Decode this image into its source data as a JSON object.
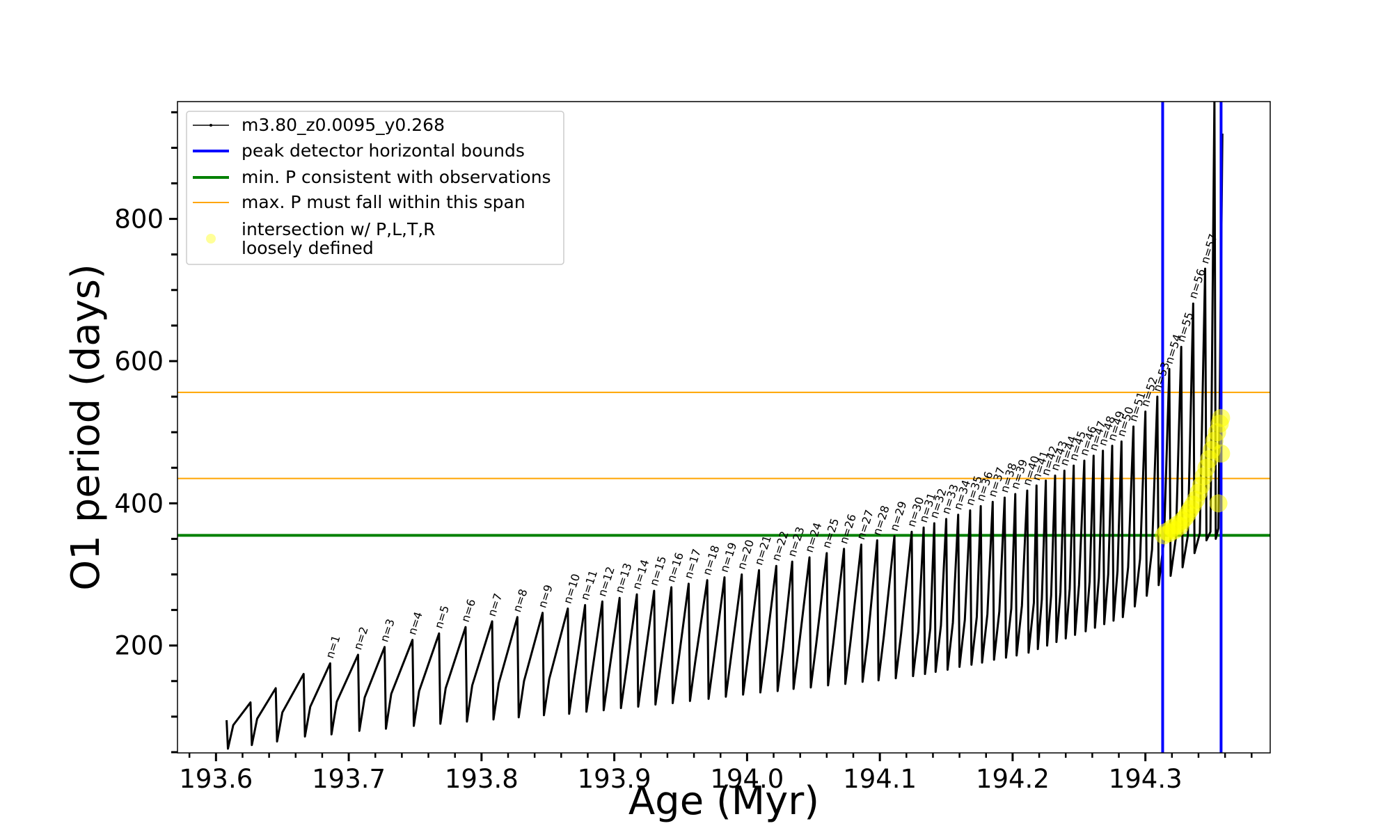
{
  "chart_data": {
    "type": "line",
    "xlabel": "Age (Myr)",
    "ylabel": "O1 period (days)",
    "xlim": [
      193.571,
      194.394
    ],
    "ylim": [
      49,
      965
    ],
    "xticks": [
      193.6,
      193.7,
      193.8,
      193.9,
      {
        "value": 194,
        "label": "194.0"
      },
      194.1,
      194.2,
      194.3
    ],
    "xminor_ticks": [
      193.58,
      193.62,
      193.64,
      193.66,
      193.68,
      193.72,
      193.74,
      193.76,
      193.78,
      193.82,
      193.84,
      193.86,
      193.88,
      193.92,
      193.94,
      193.96,
      193.98,
      194.02,
      194.04,
      194.06,
      194.08,
      194.12,
      194.14,
      194.16,
      194.18,
      194.22,
      194.24,
      194.26,
      194.28,
      194.32,
      194.34,
      194.36,
      194.38
    ],
    "yticks": [
      200,
      400,
      600,
      800
    ],
    "yminor_ticks": [
      50,
      100,
      150,
      250,
      300,
      350,
      450,
      500,
      550,
      650,
      700,
      750,
      850,
      900,
      950
    ],
    "legend": "upper left",
    "series": [
      {
        "name": "m3.80_z0.0095_y0.268",
        "type": "line",
        "color": "#000000",
        "x": [
          193.608,
          193.609,
          193.613,
          193.626,
          193.627,
          193.631,
          193.645,
          193.646,
          193.65,
          193.666,
          193.667,
          193.671,
          193.686,
          193.687,
          193.691,
          193.707,
          193.708,
          193.712,
          193.727,
          193.728,
          193.732,
          193.748,
          193.749,
          193.753,
          193.768,
          193.769,
          193.773,
          193.788,
          193.789,
          193.793,
          193.808,
          193.809,
          193.813,
          193.827,
          193.828,
          193.832,
          193.846,
          193.847,
          193.851,
          193.865,
          193.866,
          193.87,
          193.878,
          193.879,
          193.883,
          193.891,
          193.892,
          193.896,
          193.904,
          193.905,
          193.909,
          193.917,
          193.918,
          193.922,
          193.93,
          193.931,
          193.935,
          193.943,
          193.944,
          193.948,
          193.956,
          193.957,
          193.961,
          193.97,
          193.971,
          193.975,
          193.983,
          193.984,
          193.988,
          193.996,
          193.997,
          194.001,
          194.009,
          194.01,
          194.014,
          194.022,
          194.023,
          194.027,
          194.034,
          194.035,
          194.039,
          194.047,
          194.048,
          194.052,
          194.06,
          194.061,
          194.065,
          194.073,
          194.074,
          194.078,
          194.086,
          194.087,
          194.091,
          194.098,
          194.099,
          194.103,
          194.111,
          194.112,
          194.116,
          194.124,
          194.125,
          194.129,
          194.133,
          194.134,
          194.138,
          194.141,
          194.142,
          194.146,
          194.15,
          194.151,
          194.155,
          194.159,
          194.16,
          194.164,
          194.168,
          194.169,
          194.173,
          194.176,
          194.177,
          194.181,
          194.185,
          194.186,
          194.19,
          194.194,
          194.195,
          194.199,
          194.202,
          194.203,
          194.207,
          194.211,
          194.212,
          194.216,
          194.218,
          194.219,
          194.222,
          194.225,
          194.226,
          194.229,
          194.232,
          194.233,
          194.236,
          194.239,
          194.24,
          194.243,
          194.246,
          194.247,
          194.25,
          194.254,
          194.255,
          194.258,
          194.261,
          194.262,
          194.265,
          194.268,
          194.269,
          194.272,
          194.275,
          194.276,
          194.279,
          194.282,
          194.283,
          194.287,
          194.291,
          194.292,
          194.296,
          194.3,
          194.301,
          194.305,
          194.309,
          194.31,
          194.314,
          194.318,
          194.319,
          194.323,
          194.327,
          194.328,
          194.332,
          194.336,
          194.337,
          194.341,
          194.345,
          194.346,
          194.349,
          194.352,
          194.353,
          194.355,
          194.358
        ],
        "values": [
          95,
          55,
          88,
          120,
          60,
          97,
          140,
          65,
          106,
          160,
          72,
          114,
          175,
          75,
          121,
          187,
          80,
          127,
          198,
          83,
          132,
          208,
          87,
          136,
          217,
          90,
          140,
          226,
          93,
          144,
          234,
          96,
          147,
          240,
          99,
          150,
          246,
          102,
          153,
          252,
          104,
          156,
          257,
          107,
          159,
          262,
          109,
          162,
          267,
          112,
          165,
          272,
          114,
          168,
          277,
          117,
          171,
          282,
          119,
          174,
          287,
          122,
          178,
          292,
          125,
          181,
          296,
          128,
          185,
          300,
          131,
          189,
          306,
          134,
          192,
          312,
          136,
          195,
          318,
          139,
          198,
          324,
          141,
          201,
          330,
          144,
          204,
          336,
          146,
          207,
          342,
          149,
          210,
          348,
          151,
          213,
          354,
          154,
          216,
          360,
          157,
          220,
          366,
          160,
          224,
          372,
          163,
          228,
          378,
          166,
          232,
          384,
          170,
          236,
          390,
          173,
          240,
          396,
          176,
          244,
          402,
          180,
          248,
          408,
          183,
          252,
          413,
          186,
          256,
          418,
          190,
          260,
          425,
          195,
          265,
          432,
          200,
          270,
          439,
          205,
          275,
          446,
          210,
          280,
          453,
          215,
          285,
          460,
          220,
          290,
          467,
          225,
          295,
          474,
          230,
          300,
          481,
          235,
          305,
          487,
          240,
          310,
          508,
          255,
          322,
          529,
          270,
          335,
          550,
          285,
          348,
          589,
          298,
          352,
          620,
          310,
          355,
          681,
          330,
          358,
          730,
          348,
          360,
          970,
          350,
          365,
          920
        ]
      },
      {
        "name": "peak detector horizontal bounds",
        "type": "vline",
        "color": "#0000ff",
        "x": [
          194.313,
          194.357
        ]
      },
      {
        "name": "min. P consistent with observations",
        "type": "hline",
        "color": "#008000",
        "values": [
          355
        ]
      },
      {
        "name": "max. P must fall within this span",
        "type": "hline",
        "color": "#ffa500",
        "values": [
          435,
          556
        ]
      },
      {
        "name": "intersection w/ P,L,T,R\nloosely defined",
        "type": "scatter",
        "color": "#ffff00",
        "x": [
          194.314,
          194.316,
          194.318,
          194.32,
          194.322,
          194.324,
          194.326,
          194.328,
          194.33,
          194.332,
          194.334,
          194.336,
          194.338,
          194.34,
          194.342,
          194.344,
          194.346,
          194.348,
          194.35,
          194.352,
          194.354,
          194.356,
          194.357,
          194.357,
          194.355
        ],
        "values": [
          355,
          360,
          358,
          365,
          362,
          370,
          368,
          376,
          380,
          386,
          392,
          398,
          405,
          415,
          425,
          438,
          450,
          462,
          475,
          488,
          500,
          512,
          520,
          470,
          400
        ]
      }
    ],
    "annotations": [
      {
        "text": "n=1",
        "x": 193.686,
        "y": 175
      },
      {
        "text": "n=2",
        "x": 193.707,
        "y": 187
      },
      {
        "text": "n=3",
        "x": 193.727,
        "y": 198
      },
      {
        "text": "n=4",
        "x": 193.748,
        "y": 208
      },
      {
        "text": "n=5",
        "x": 193.768,
        "y": 217
      },
      {
        "text": "n=6",
        "x": 193.788,
        "y": 226
      },
      {
        "text": "n=7",
        "x": 193.808,
        "y": 234
      },
      {
        "text": "n=8",
        "x": 193.827,
        "y": 240
      },
      {
        "text": "n=9",
        "x": 193.846,
        "y": 246
      },
      {
        "text": "n=10",
        "x": 193.865,
        "y": 252
      },
      {
        "text": "n=11",
        "x": 193.878,
        "y": 257
      },
      {
        "text": "n=12",
        "x": 193.891,
        "y": 262
      },
      {
        "text": "n=13",
        "x": 193.904,
        "y": 267
      },
      {
        "text": "n=14",
        "x": 193.917,
        "y": 272
      },
      {
        "text": "n=15",
        "x": 193.93,
        "y": 277
      },
      {
        "text": "n=16",
        "x": 193.943,
        "y": 282
      },
      {
        "text": "n=17",
        "x": 193.956,
        "y": 287
      },
      {
        "text": "n=18",
        "x": 193.97,
        "y": 292
      },
      {
        "text": "n=19",
        "x": 193.983,
        "y": 296
      },
      {
        "text": "n=20",
        "x": 193.996,
        "y": 300
      },
      {
        "text": "n=21",
        "x": 194.009,
        "y": 306
      },
      {
        "text": "n=22",
        "x": 194.022,
        "y": 312
      },
      {
        "text": "n=23",
        "x": 194.034,
        "y": 318
      },
      {
        "text": "n=24",
        "x": 194.047,
        "y": 324
      },
      {
        "text": "n=25",
        "x": 194.06,
        "y": 330
      },
      {
        "text": "n=26",
        "x": 194.073,
        "y": 336
      },
      {
        "text": "n=27",
        "x": 194.086,
        "y": 342
      },
      {
        "text": "n=28",
        "x": 194.098,
        "y": 348
      },
      {
        "text": "n=29",
        "x": 194.111,
        "y": 354
      },
      {
        "text": "n=30",
        "x": 194.124,
        "y": 360
      },
      {
        "text": "n=31",
        "x": 194.133,
        "y": 366
      },
      {
        "text": "n=32",
        "x": 194.141,
        "y": 372
      },
      {
        "text": "n=33",
        "x": 194.15,
        "y": 378
      },
      {
        "text": "n=34",
        "x": 194.159,
        "y": 384
      },
      {
        "text": "n=35",
        "x": 194.168,
        "y": 390
      },
      {
        "text": "n=36",
        "x": 194.176,
        "y": 396
      },
      {
        "text": "n=37",
        "x": 194.185,
        "y": 402
      },
      {
        "text": "n=38",
        "x": 194.194,
        "y": 408
      },
      {
        "text": "n=39",
        "x": 194.202,
        "y": 413
      },
      {
        "text": "n=40",
        "x": 194.211,
        "y": 418
      },
      {
        "text": "n=41",
        "x": 194.218,
        "y": 425
      },
      {
        "text": "n=42",
        "x": 194.225,
        "y": 432
      },
      {
        "text": "n=43",
        "x": 194.232,
        "y": 439
      },
      {
        "text": "n=44",
        "x": 194.239,
        "y": 446
      },
      {
        "text": "n=45",
        "x": 194.246,
        "y": 453
      },
      {
        "text": "n=46",
        "x": 194.254,
        "y": 460
      },
      {
        "text": "n=47",
        "x": 194.261,
        "y": 467
      },
      {
        "text": "n=48",
        "x": 194.268,
        "y": 474
      },
      {
        "text": "n=49",
        "x": 194.275,
        "y": 481
      },
      {
        "text": "n=50",
        "x": 194.282,
        "y": 487
      },
      {
        "text": "n=51",
        "x": 194.291,
        "y": 508
      },
      {
        "text": "n=52",
        "x": 194.3,
        "y": 529
      },
      {
        "text": "n=53",
        "x": 194.309,
        "y": 550
      },
      {
        "text": "n=54",
        "x": 194.318,
        "y": 589
      },
      {
        "text": "n=55",
        "x": 194.327,
        "y": 620
      },
      {
        "text": "n=56",
        "x": 194.336,
        "y": 681
      },
      {
        "text": "n=57",
        "x": 194.345,
        "y": 730
      }
    ]
  }
}
